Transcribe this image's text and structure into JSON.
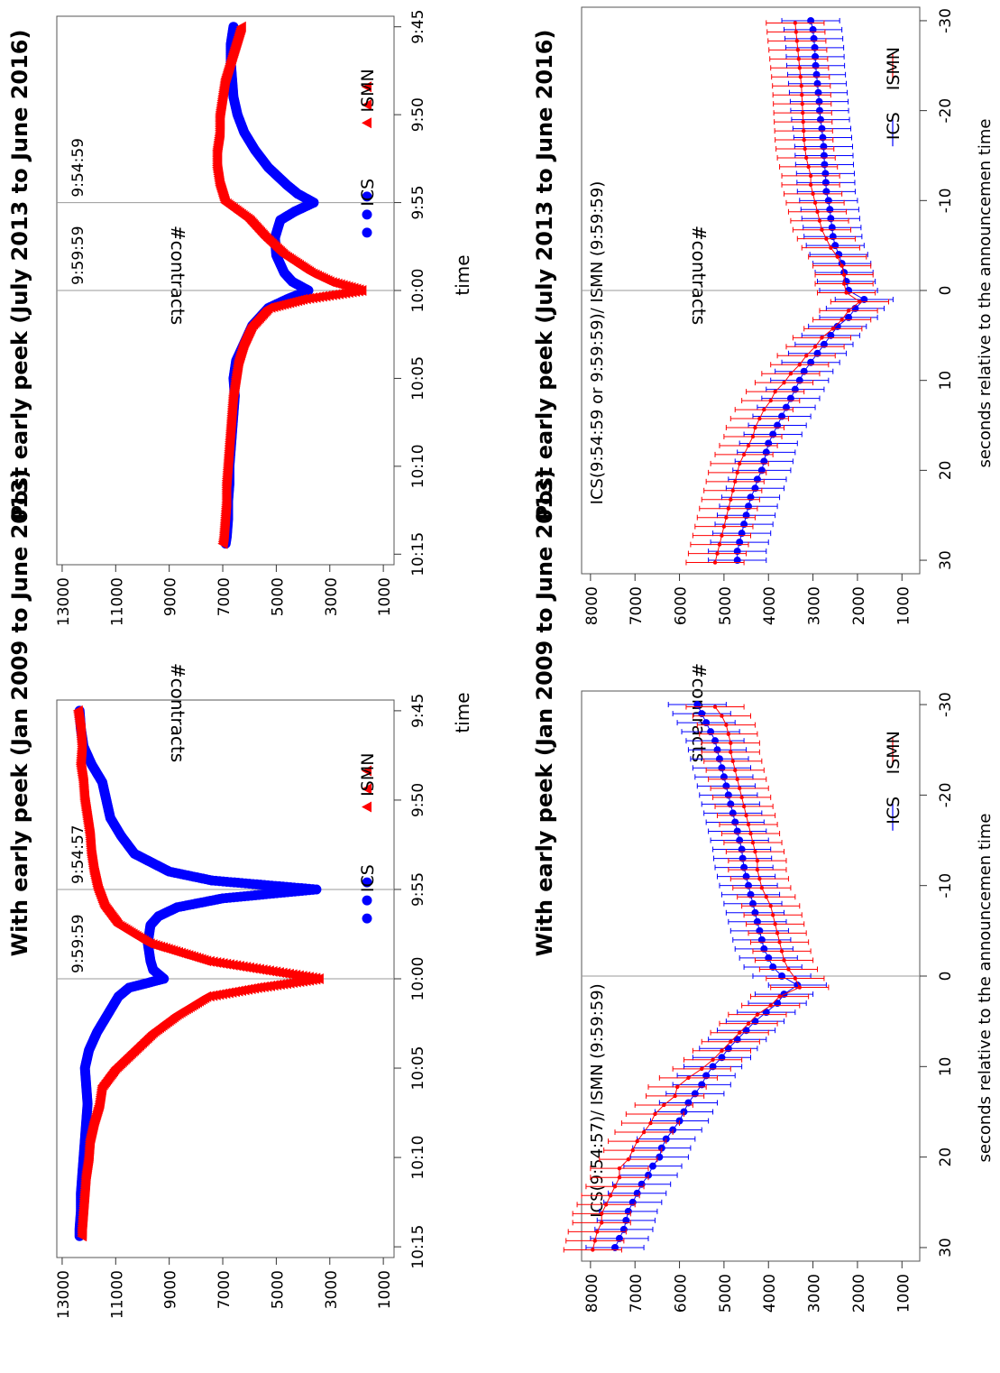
{
  "chart_data": [
    {
      "id": "p1",
      "type": "scatter",
      "title": "With early peek (Jan 2009 to June 2013)",
      "xlabel": "time",
      "ylabel": "#contracts",
      "x_ticks": [
        "9:45",
        "9:50",
        "9:55",
        "10:00",
        "10:05",
        "10:10",
        "10:15"
      ],
      "x_range_minutes": [
        585,
        615
      ],
      "y_ticks": [
        1000,
        3000,
        5000,
        7000,
        9000,
        11000,
        13000
      ],
      "ylim": [
        600,
        13200
      ],
      "vlines": [
        {
          "x": 595,
          "label": "9:54:57"
        },
        {
          "x": 600,
          "label": "9:59:59"
        }
      ],
      "legend": "bottom-right",
      "series": [
        {
          "name": "ICS",
          "color": "#0000ff",
          "marker": "circle",
          "points": [
            [
              585,
              12350
            ],
            [
              586,
              12300
            ],
            [
              587,
              12200
            ],
            [
              588,
              11900
            ],
            [
              589,
              11500
            ],
            [
              590,
              11350
            ],
            [
              591,
              11200
            ],
            [
              592,
              10800
            ],
            [
              593,
              10300
            ],
            [
              594,
              9000
            ],
            [
              594.5,
              7400
            ],
            [
              595,
              3500
            ],
            [
              595.5,
              7000
            ],
            [
              596,
              8700
            ],
            [
              596.5,
              9400
            ],
            [
              597,
              9700
            ],
            [
              598,
              9800
            ],
            [
              599,
              9700
            ],
            [
              599.5,
              9600
            ],
            [
              600,
              9200
            ],
            [
              600.5,
              10500
            ],
            [
              601,
              10900
            ],
            [
              602,
              11300
            ],
            [
              603,
              11700
            ],
            [
              604,
              12000
            ],
            [
              605,
              12150
            ],
            [
              606,
              12100
            ],
            [
              607,
              12050
            ],
            [
              608,
              12100
            ],
            [
              609,
              12150
            ],
            [
              610,
              12200
            ],
            [
              611,
              12250
            ],
            [
              612,
              12300
            ],
            [
              613,
              12300
            ],
            [
              614,
              12350
            ],
            [
              614.5,
              12350
            ]
          ]
        },
        {
          "name": "ISMN",
          "color": "#ff0000",
          "marker": "triangle",
          "points": [
            [
              585,
              12400
            ],
            [
              586,
              12300
            ],
            [
              587,
              12250
            ],
            [
              588,
              12300
            ],
            [
              589,
              12200
            ],
            [
              590,
              12150
            ],
            [
              591,
              12050
            ],
            [
              592,
              11950
            ],
            [
              593,
              11900
            ],
            [
              594,
              11800
            ],
            [
              595,
              11650
            ],
            [
              596,
              11400
            ],
            [
              597,
              10900
            ],
            [
              598,
              9800
            ],
            [
              599,
              7600
            ],
            [
              599.5,
              5500
            ],
            [
              600,
              3400
            ],
            [
              600.5,
              5700
            ],
            [
              601,
              7600
            ],
            [
              602,
              8700
            ],
            [
              603,
              9600
            ],
            [
              604,
              10300
            ],
            [
              605,
              11000
            ],
            [
              606,
              11500
            ],
            [
              607,
              11600
            ],
            [
              608,
              11800
            ],
            [
              609,
              11950
            ],
            [
              610,
              12000
            ],
            [
              611,
              12100
            ],
            [
              612,
              12150
            ],
            [
              613,
              12200
            ],
            [
              614,
              12250
            ],
            [
              614.5,
              12250
            ]
          ]
        }
      ]
    },
    {
      "id": "p2",
      "type": "scatter",
      "title": "Post early peek (July 2013 to June 2016)",
      "xlabel": "time",
      "ylabel": "#contracts",
      "x_ticks": [
        "9:45",
        "9:50",
        "9:55",
        "10:00",
        "10:05",
        "10:10",
        "10:15"
      ],
      "x_range_minutes": [
        585,
        615
      ],
      "y_ticks": [
        1000,
        3000,
        5000,
        7000,
        9000,
        11000,
        13000
      ],
      "ylim": [
        600,
        13200
      ],
      "vlines": [
        {
          "x": 595,
          "label": "9:54:59"
        },
        {
          "x": 600,
          "label": "9:59:59"
        }
      ],
      "legend": "bottom-right",
      "series": [
        {
          "name": "ICS",
          "color": "#0000ff",
          "marker": "circle",
          "points": [
            [
              585,
              6600
            ],
            [
              586,
              6700
            ],
            [
              587,
              6700
            ],
            [
              588,
              6650
            ],
            [
              589,
              6600
            ],
            [
              590,
              6450
            ],
            [
              591,
              6200
            ],
            [
              592,
              5800
            ],
            [
              593,
              5300
            ],
            [
              594,
              4600
            ],
            [
              594.5,
              4200
            ],
            [
              595,
              3600
            ],
            [
              595.5,
              4300
            ],
            [
              596,
              4850
            ],
            [
              597,
              5050
            ],
            [
              598,
              5000
            ],
            [
              599,
              4700
            ],
            [
              599.5,
              4400
            ],
            [
              600,
              3800
            ],
            [
              600.5,
              4600
            ],
            [
              601,
              5300
            ],
            [
              602,
              5900
            ],
            [
              603,
              6200
            ],
            [
              604,
              6500
            ],
            [
              605,
              6600
            ],
            [
              606,
              6550
            ],
            [
              607,
              6600
            ],
            [
              608,
              6650
            ],
            [
              609,
              6700
            ],
            [
              610,
              6750
            ],
            [
              611,
              6750
            ],
            [
              612,
              6800
            ],
            [
              613,
              6800
            ],
            [
              614,
              6850
            ],
            [
              614.5,
              6900
            ]
          ]
        },
        {
          "name": "ISMN",
          "color": "#ff0000",
          "marker": "triangle",
          "points": [
            [
              585,
              6300
            ],
            [
              586,
              6500
            ],
            [
              587,
              6700
            ],
            [
              588,
              6900
            ],
            [
              589,
              7000
            ],
            [
              590,
              7100
            ],
            [
              591,
              7100
            ],
            [
              592,
              7200
            ],
            [
              593,
              7200
            ],
            [
              594,
              7100
            ],
            [
              595,
              6900
            ],
            [
              596,
              6000
            ],
            [
              597,
              5400
            ],
            [
              598,
              4700
            ],
            [
              599,
              3700
            ],
            [
              599.5,
              3000
            ],
            [
              600,
              1800
            ],
            [
              600.5,
              4000
            ],
            [
              601,
              5300
            ],
            [
              602,
              5900
            ],
            [
              603,
              6200
            ],
            [
              604,
              6400
            ],
            [
              605,
              6500
            ],
            [
              606,
              6600
            ],
            [
              607,
              6650
            ],
            [
              608,
              6700
            ],
            [
              609,
              6750
            ],
            [
              610,
              6800
            ],
            [
              611,
              6850
            ],
            [
              612,
              6850
            ],
            [
              613,
              6900
            ],
            [
              614,
              6950
            ],
            [
              614.5,
              7000
            ]
          ]
        }
      ]
    },
    {
      "id": "p3",
      "type": "line",
      "title": "With early peek (Jan 2009 to June 2013)",
      "xlabel": "seconds relative to the announcemen time",
      "ylabel": "#contracts",
      "x_ticks": [
        -30,
        -20,
        -10,
        0,
        10,
        20,
        30
      ],
      "xlim": [
        -31,
        31
      ],
      "y_ticks": [
        1000,
        2000,
        3000,
        4000,
        5000,
        6000,
        7000,
        8000
      ],
      "ylim": [
        600,
        8200
      ],
      "vlines": [
        {
          "x": 0
        }
      ],
      "annotation": "ICS(9:54:57)/ ISMN (9:59:59)",
      "legend": "bottom-right",
      "errorbar_halfwidth": 650,
      "x": [
        -30,
        -29,
        -28,
        -27,
        -26,
        -25,
        -24,
        -23,
        -22,
        -21,
        -20,
        -19,
        -18,
        -17,
        -16,
        -15,
        -14,
        -13,
        -12,
        -11,
        -10,
        -9,
        -8,
        -7,
        -6,
        -5,
        -4,
        -3,
        -2,
        -1,
        0,
        1,
        2,
        3,
        4,
        5,
        6,
        7,
        8,
        9,
        10,
        11,
        12,
        13,
        14,
        15,
        16,
        17,
        18,
        19,
        20,
        21,
        22,
        23,
        24,
        25,
        26,
        27,
        28,
        29,
        30
      ],
      "series": [
        {
          "name": "ICS",
          "color": "#0000ff",
          "values": [
            5600,
            5500,
            5400,
            5300,
            5200,
            5150,
            5100,
            5050,
            5000,
            4950,
            4900,
            4850,
            4800,
            4750,
            4700,
            4650,
            4600,
            4580,
            4550,
            4500,
            4450,
            4400,
            4350,
            4300,
            4250,
            4200,
            4150,
            4100,
            4000,
            3900,
            3700,
            3350,
            3650,
            3800,
            4050,
            4300,
            4500,
            4700,
            4900,
            5050,
            5250,
            5400,
            5500,
            5650,
            5800,
            5900,
            6000,
            6150,
            6300,
            6400,
            6450,
            6600,
            6700,
            6850,
            6950,
            7050,
            7150,
            7200,
            7250,
            7350,
            7450
          ]
        },
        {
          "name": "ISMN",
          "color": "#ff0000",
          "values": [
            5200,
            5050,
            4950,
            4900,
            4850,
            4850,
            4800,
            4750,
            4700,
            4650,
            4600,
            4550,
            4500,
            4450,
            4400,
            4350,
            4300,
            4250,
            4250,
            4200,
            4150,
            4050,
            3950,
            3900,
            3850,
            3800,
            3750,
            3700,
            3650,
            3550,
            3400,
            3300,
            3750,
            3950,
            4250,
            4450,
            4650,
            4850,
            5050,
            5250,
            5500,
            5800,
            6050,
            6100,
            6350,
            6550,
            6650,
            6800,
            6950,
            7050,
            7150,
            7350,
            7350,
            7450,
            7550,
            7650,
            7750,
            7750,
            7850,
            7900,
            7950
          ]
        }
      ]
    },
    {
      "id": "p4",
      "type": "line",
      "title": "Post early peek (July 2013 to June 2016)",
      "xlabel": "seconds relative to the announcemen time",
      "ylabel": "#contracts",
      "x_ticks": [
        -30,
        -20,
        -10,
        0,
        10,
        20,
        30
      ],
      "xlim": [
        -31,
        31
      ],
      "y_ticks": [
        1000,
        2000,
        3000,
        4000,
        5000,
        6000,
        7000,
        8000
      ],
      "ylim": [
        600,
        8200
      ],
      "vlines": [
        {
          "x": 0
        }
      ],
      "annotation": "ICS(9:54:59 or 9:59:59)/ ISMN (9:59:59)",
      "legend": "bottom-right",
      "errorbar_halfwidth": 650,
      "x": [
        -30,
        -29,
        -28,
        -27,
        -26,
        -25,
        -24,
        -23,
        -22,
        -21,
        -20,
        -19,
        -18,
        -17,
        -16,
        -15,
        -14,
        -13,
        -12,
        -11,
        -10,
        -9,
        -8,
        -7,
        -6,
        -5,
        -4,
        -3,
        -2,
        -1,
        0,
        1,
        2,
        3,
        4,
        5,
        6,
        7,
        8,
        9,
        10,
        11,
        12,
        13,
        14,
        15,
        16,
        17,
        18,
        19,
        20,
        21,
        22,
        23,
        24,
        25,
        26,
        27,
        28,
        29,
        30
      ],
      "series": [
        {
          "name": "ICS",
          "color": "#0000ff",
          "values": [
            3050,
            3000,
            2980,
            2960,
            2950,
            2940,
            2920,
            2900,
            2880,
            2860,
            2850,
            2830,
            2800,
            2780,
            2760,
            2750,
            2740,
            2720,
            2710,
            2700,
            2650,
            2620,
            2600,
            2570,
            2550,
            2500,
            2420,
            2350,
            2300,
            2250,
            2200,
            1850,
            2050,
            2200,
            2450,
            2600,
            2750,
            2900,
            3050,
            3200,
            3300,
            3400,
            3500,
            3600,
            3700,
            3800,
            3900,
            4000,
            4050,
            4100,
            4150,
            4250,
            4300,
            4400,
            4450,
            4500,
            4550,
            4600,
            4650,
            4700,
            4700
          ]
        },
        {
          "name": "ISMN",
          "color": "#ff0000",
          "values": [
            3400,
            3380,
            3360,
            3340,
            3320,
            3300,
            3280,
            3260,
            3250,
            3240,
            3230,
            3220,
            3210,
            3200,
            3180,
            3150,
            3100,
            3050,
            3050,
            3000,
            2950,
            2900,
            2850,
            2800,
            2700,
            2600,
            2450,
            2350,
            2300,
            2300,
            2250,
            1950,
            2200,
            2350,
            2550,
            2800,
            2950,
            3150,
            3300,
            3500,
            3650,
            3850,
            3950,
            4100,
            4200,
            4300,
            4350,
            4450,
            4550,
            4650,
            4700,
            4750,
            4800,
            4850,
            4900,
            4950,
            5000,
            5050,
            5100,
            5150,
            5200
          ]
        }
      ]
    }
  ]
}
